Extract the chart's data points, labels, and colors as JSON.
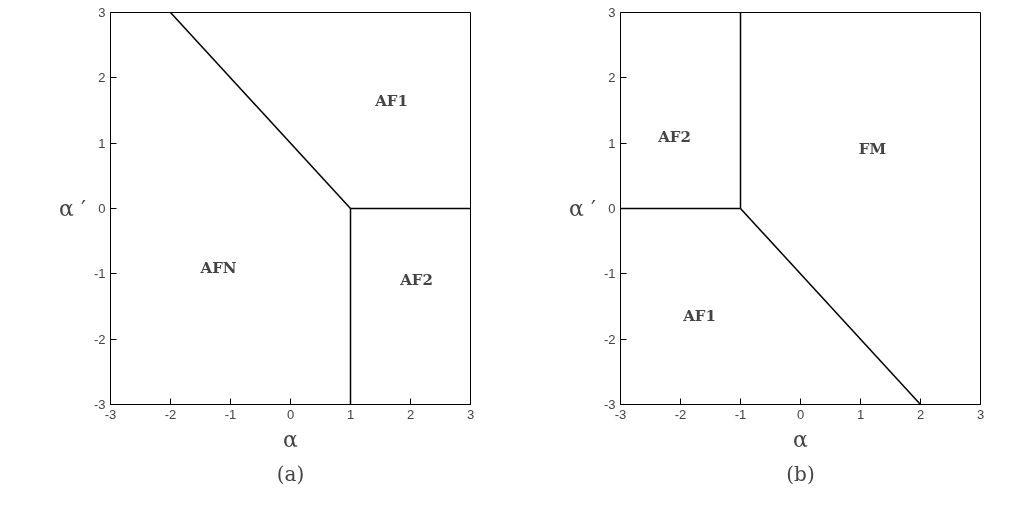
{
  "chart_data": [
    {
      "type": "line",
      "xlabel": "α",
      "ylabel": "α ′",
      "xlim": [
        -3,
        3
      ],
      "ylim": [
        -3,
        3
      ],
      "xticks": [
        -3,
        -2,
        -1,
        0,
        1,
        2,
        3
      ],
      "yticks": [
        -3,
        -2,
        -1,
        0,
        1,
        2,
        3
      ],
      "grid": false,
      "marker": "none",
      "line_style": "solid",
      "series": [
        {
          "color": "#000000",
          "x": [
            -2,
            1
          ],
          "values": [
            3,
            0
          ]
        },
        {
          "color": "#000000",
          "x": [
            1,
            3
          ],
          "values": [
            0,
            0
          ]
        },
        {
          "color": "#000000",
          "x": [
            1,
            1
          ],
          "values": [
            0,
            -3
          ]
        }
      ],
      "annotations": [
        "AF1",
        "AFN",
        "AF2",
        "(a)"
      ]
    },
    {
      "type": "line",
      "xlabel": "α",
      "ylabel": "α ′",
      "xlim": [
        -3,
        3
      ],
      "ylim": [
        -3,
        3
      ],
      "xticks": [
        -3,
        -2,
        -1,
        0,
        1,
        2,
        3
      ],
      "yticks": [
        -3,
        -2,
        -1,
        0,
        1,
        2,
        3
      ],
      "grid": false,
      "marker": "none",
      "line_style": "solid",
      "series": [
        {
          "color": "#000000",
          "x": [
            -1,
            -1
          ],
          "values": [
            3,
            0
          ]
        },
        {
          "color": "#000000",
          "x": [
            -3,
            -1
          ],
          "values": [
            0,
            0
          ]
        },
        {
          "color": "#000000",
          "x": [
            -1,
            2
          ],
          "values": [
            0,
            -3
          ]
        }
      ],
      "annotations": [
        "AF2",
        "AF1",
        "FM",
        "(b)"
      ]
    }
  ]
}
